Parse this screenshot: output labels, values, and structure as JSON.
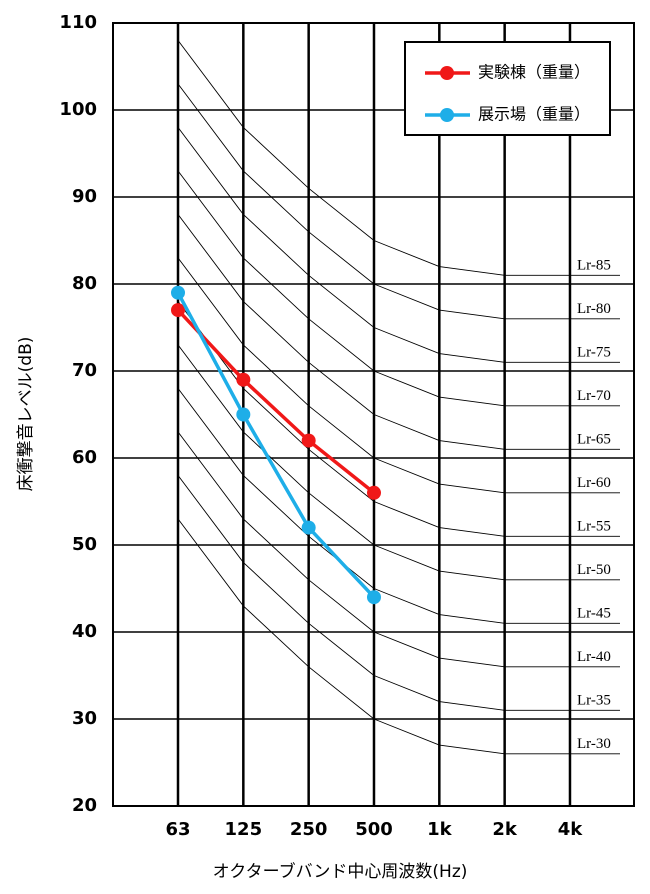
{
  "chart_data": {
    "type": "line",
    "y_label": "床衝撃音レベル(dB)",
    "x_label": "オクターブバンド中心周波数(Hz)",
    "categories": [
      "63",
      "125",
      "250",
      "500",
      "1k",
      "2k",
      "4k"
    ],
    "ylim": [
      20,
      110
    ],
    "yticks": [
      20,
      30,
      40,
      50,
      60,
      70,
      80,
      90,
      100,
      110
    ],
    "grid": true,
    "legend": "upper right",
    "series": [
      {
        "name": "実験棟（重量）",
        "color": "#f01818",
        "values": [
          77,
          69,
          62,
          56,
          null,
          null,
          null
        ]
      },
      {
        "name": "展示場（重量）",
        "color": "#1eaee8",
        "values": [
          79,
          65,
          52,
          44,
          null,
          null,
          null
        ]
      }
    ],
    "reference_curves": [
      {
        "name": "Lr-85",
        "values": [
          108,
          98,
          91,
          85,
          82,
          81,
          81
        ]
      },
      {
        "name": "Lr-80",
        "values": [
          103,
          93,
          86,
          80,
          77,
          76,
          76
        ]
      },
      {
        "name": "Lr-75",
        "values": [
          98,
          88,
          81,
          75,
          72,
          71,
          71
        ]
      },
      {
        "name": "Lr-70",
        "values": [
          93,
          83,
          76,
          70,
          67,
          66,
          66
        ]
      },
      {
        "name": "Lr-65",
        "values": [
          88,
          78,
          71,
          65,
          62,
          61,
          61
        ]
      },
      {
        "name": "Lr-60",
        "values": [
          83,
          73,
          66,
          60,
          57,
          56,
          56
        ]
      },
      {
        "name": "Lr-55",
        "values": [
          78,
          68,
          61,
          55,
          52,
          51,
          51
        ]
      },
      {
        "name": "Lr-50",
        "values": [
          73,
          63,
          56,
          50,
          47,
          46,
          46
        ]
      },
      {
        "name": "Lr-45",
        "values": [
          68,
          58,
          51,
          45,
          42,
          41,
          41
        ]
      },
      {
        "name": "Lr-40",
        "values": [
          63,
          53,
          46,
          40,
          37,
          36,
          36
        ]
      },
      {
        "name": "Lr-35",
        "values": [
          58,
          48,
          41,
          35,
          32,
          31,
          31
        ]
      },
      {
        "name": "Lr-30",
        "values": [
          53,
          43,
          36,
          30,
          27,
          26,
          26
        ]
      }
    ]
  }
}
